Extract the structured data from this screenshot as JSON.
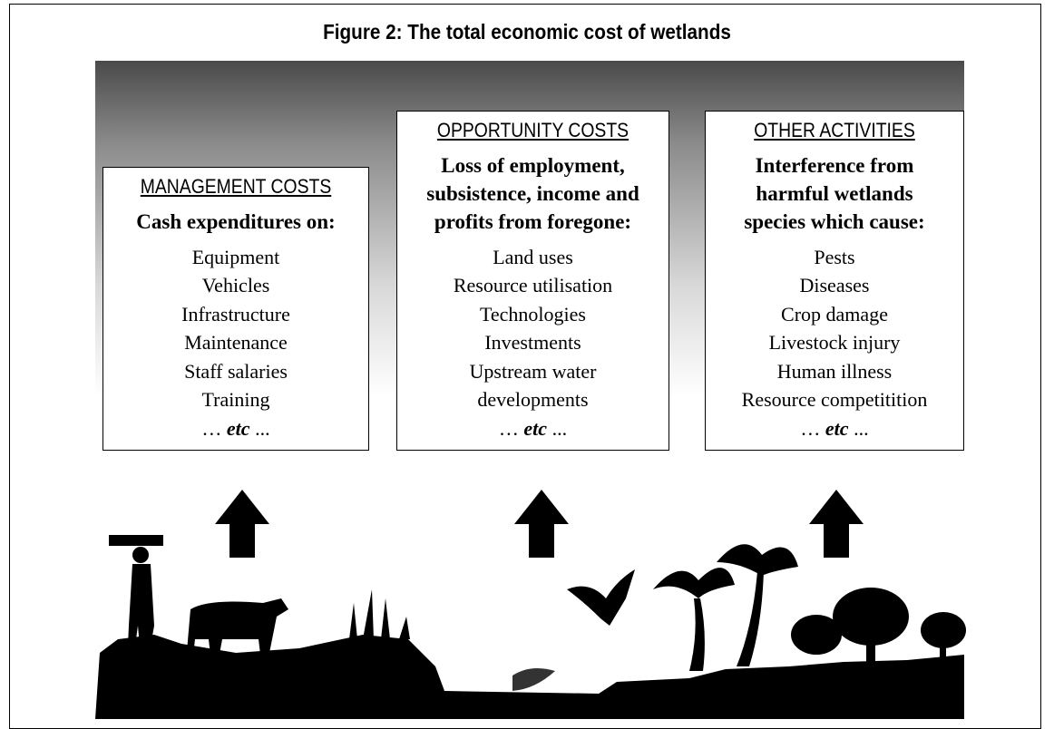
{
  "title": "Figure 2: The total economic cost of wetlands",
  "boxes": [
    {
      "heading": "MANAGEMENT COSTS",
      "subheading": [
        "Cash expenditures on:"
      ],
      "items": [
        "Equipment",
        "Vehicles",
        "Infrastructure",
        "Maintenance",
        "Staff salaries",
        "Training"
      ],
      "etc": {
        "before": "…",
        "emphasis": "etc",
        "after": "..."
      }
    },
    {
      "heading": "OPPORTUNITY COSTS",
      "subheading": [
        "Loss of employment,",
        "subsistence, income and",
        "profits from foregone:"
      ],
      "items": [
        "Land uses",
        "Resource utilisation",
        "Technologies",
        "Investments",
        "Upstream water",
        "developments"
      ],
      "etc": {
        "before": "…",
        "emphasis": "etc",
        "after": "..."
      }
    },
    {
      "heading": "OTHER ACTIVITIES",
      "subheading": [
        "Interference from",
        "harmful wetlands",
        "species which cause:"
      ],
      "items": [
        "Pests",
        "Diseases",
        "Crop damage",
        "Livestock injury",
        "Human illness",
        "Resource competitition"
      ],
      "etc": {
        "before": "…",
        "emphasis": "etc",
        "after": "..."
      }
    }
  ]
}
